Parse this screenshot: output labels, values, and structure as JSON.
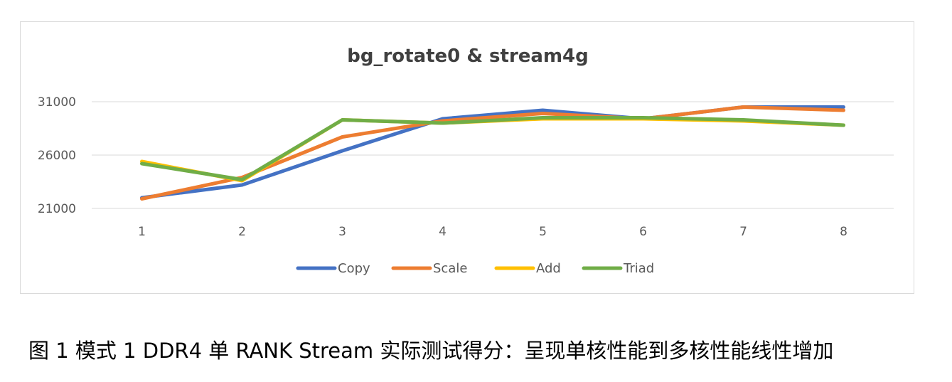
{
  "chart_data": {
    "type": "line",
    "title": "bg_rotate0 & stream4g",
    "categories": [
      "1",
      "2",
      "3",
      "4",
      "5",
      "6",
      "7",
      "8"
    ],
    "y_ticks": [
      "31000",
      "26000",
      "21000"
    ],
    "ylim": [
      21000,
      31000
    ],
    "grid": true,
    "legend_position": "bottom",
    "series": [
      {
        "name": "Copy",
        "color": "#4472C4",
        "values": [
          22000,
          23200,
          26400,
          29400,
          30200,
          29400,
          30500,
          30500
        ]
      },
      {
        "name": "Scale",
        "color": "#ED7D31",
        "values": [
          21900,
          23900,
          27700,
          29200,
          29900,
          29400,
          30500,
          30200
        ]
      },
      {
        "name": "Add",
        "color": "#FFC000",
        "values": [
          25400,
          23600,
          29300,
          29000,
          29400,
          29400,
          29200,
          28800
        ]
      },
      {
        "name": "Triad",
        "color": "#70AD47",
        "values": [
          25200,
          23700,
          29300,
          29000,
          29500,
          29500,
          29300,
          28800
        ]
      }
    ]
  },
  "caption": "图 1 模式 1 DDR4 单 RANK Stream 实际测试得分：呈现单核性能到多核性能线性增加"
}
